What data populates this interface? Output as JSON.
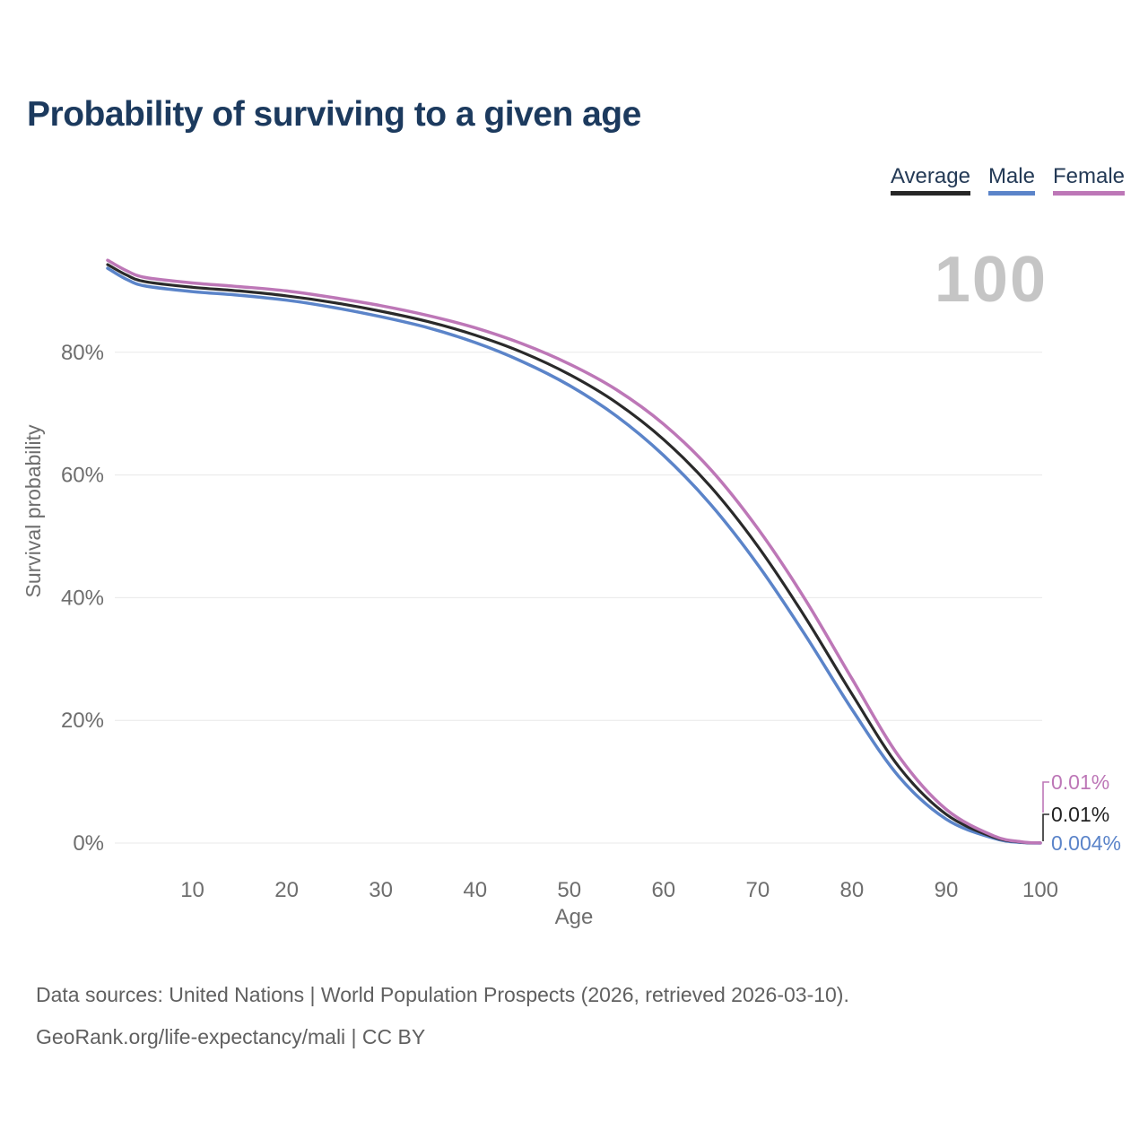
{
  "header": {
    "title": "Probability of surviving to a given age"
  },
  "legend": {
    "items": [
      {
        "label": "Average",
        "color": "#262626"
      },
      {
        "label": "Male",
        "color": "#5b84c9"
      },
      {
        "label": "Female",
        "color": "#bd77b7"
      }
    ]
  },
  "chart_data": {
    "type": "line",
    "title": "Probability of surviving to a given age",
    "xlabel": "Age",
    "ylabel": "Survival probability",
    "grid": true,
    "legend_position": "top-right",
    "xlim": [
      1,
      100
    ],
    "ylim": [
      0,
      100
    ],
    "annotation": "100",
    "x": [
      1,
      3,
      5,
      10,
      15,
      20,
      25,
      30,
      35,
      40,
      45,
      50,
      55,
      60,
      65,
      70,
      75,
      80,
      85,
      90,
      95,
      98,
      100
    ],
    "series": [
      {
        "name": "Male",
        "color": "#5b84c9",
        "values": [
          93.7,
          91.9,
          90.8,
          89.9,
          89.3,
          88.5,
          87.3,
          85.8,
          84.0,
          81.6,
          78.5,
          74.6,
          69.6,
          63.2,
          55.2,
          45.4,
          34.0,
          21.8,
          10.8,
          3.9,
          0.8,
          0.1,
          0.004
        ]
      },
      {
        "name": "Average",
        "color": "#2a2a2a",
        "values": [
          94.3,
          92.6,
          91.5,
          90.6,
          90.0,
          89.2,
          88.1,
          86.7,
          85.0,
          82.8,
          80.0,
          76.4,
          71.8,
          65.8,
          58.1,
          48.4,
          36.9,
          24.3,
          12.4,
          4.7,
          1.0,
          0.15,
          0.01
        ]
      },
      {
        "name": "Female",
        "color": "#bd77b7",
        "values": [
          95.0,
          93.3,
          92.2,
          91.3,
          90.7,
          90.0,
          88.9,
          87.6,
          86.0,
          84.0,
          81.4,
          78.1,
          73.9,
          68.3,
          60.9,
          51.3,
          39.8,
          26.8,
          14.1,
          5.5,
          1.2,
          0.2,
          0.01
        ]
      }
    ],
    "xticks": [
      {
        "value": 10,
        "label": "10"
      },
      {
        "value": 20,
        "label": "20"
      },
      {
        "value": 30,
        "label": "30"
      },
      {
        "value": 40,
        "label": "40"
      },
      {
        "value": 50,
        "label": "50"
      },
      {
        "value": 60,
        "label": "60"
      },
      {
        "value": 70,
        "label": "70"
      },
      {
        "value": 80,
        "label": "80"
      },
      {
        "value": 90,
        "label": "90"
      },
      {
        "value": 100,
        "label": "100"
      }
    ],
    "yticks": [
      {
        "value": 0,
        "label": "0%"
      },
      {
        "value": 20,
        "label": "20%"
      },
      {
        "value": 40,
        "label": "40%"
      },
      {
        "value": 60,
        "label": "60%"
      },
      {
        "value": 80,
        "label": "80%"
      }
    ],
    "end_labels": [
      {
        "series": "Female",
        "text": "0.01%"
      },
      {
        "series": "Average",
        "text": "0.01%"
      },
      {
        "series": "Male",
        "text": "0.004%"
      }
    ]
  },
  "footer": {
    "line1": "Data sources: United Nations | World Population Prospects (2026, retrieved 2026-03-10).",
    "line2": "GeoRank.org/life-expectancy/mali | CC BY"
  }
}
